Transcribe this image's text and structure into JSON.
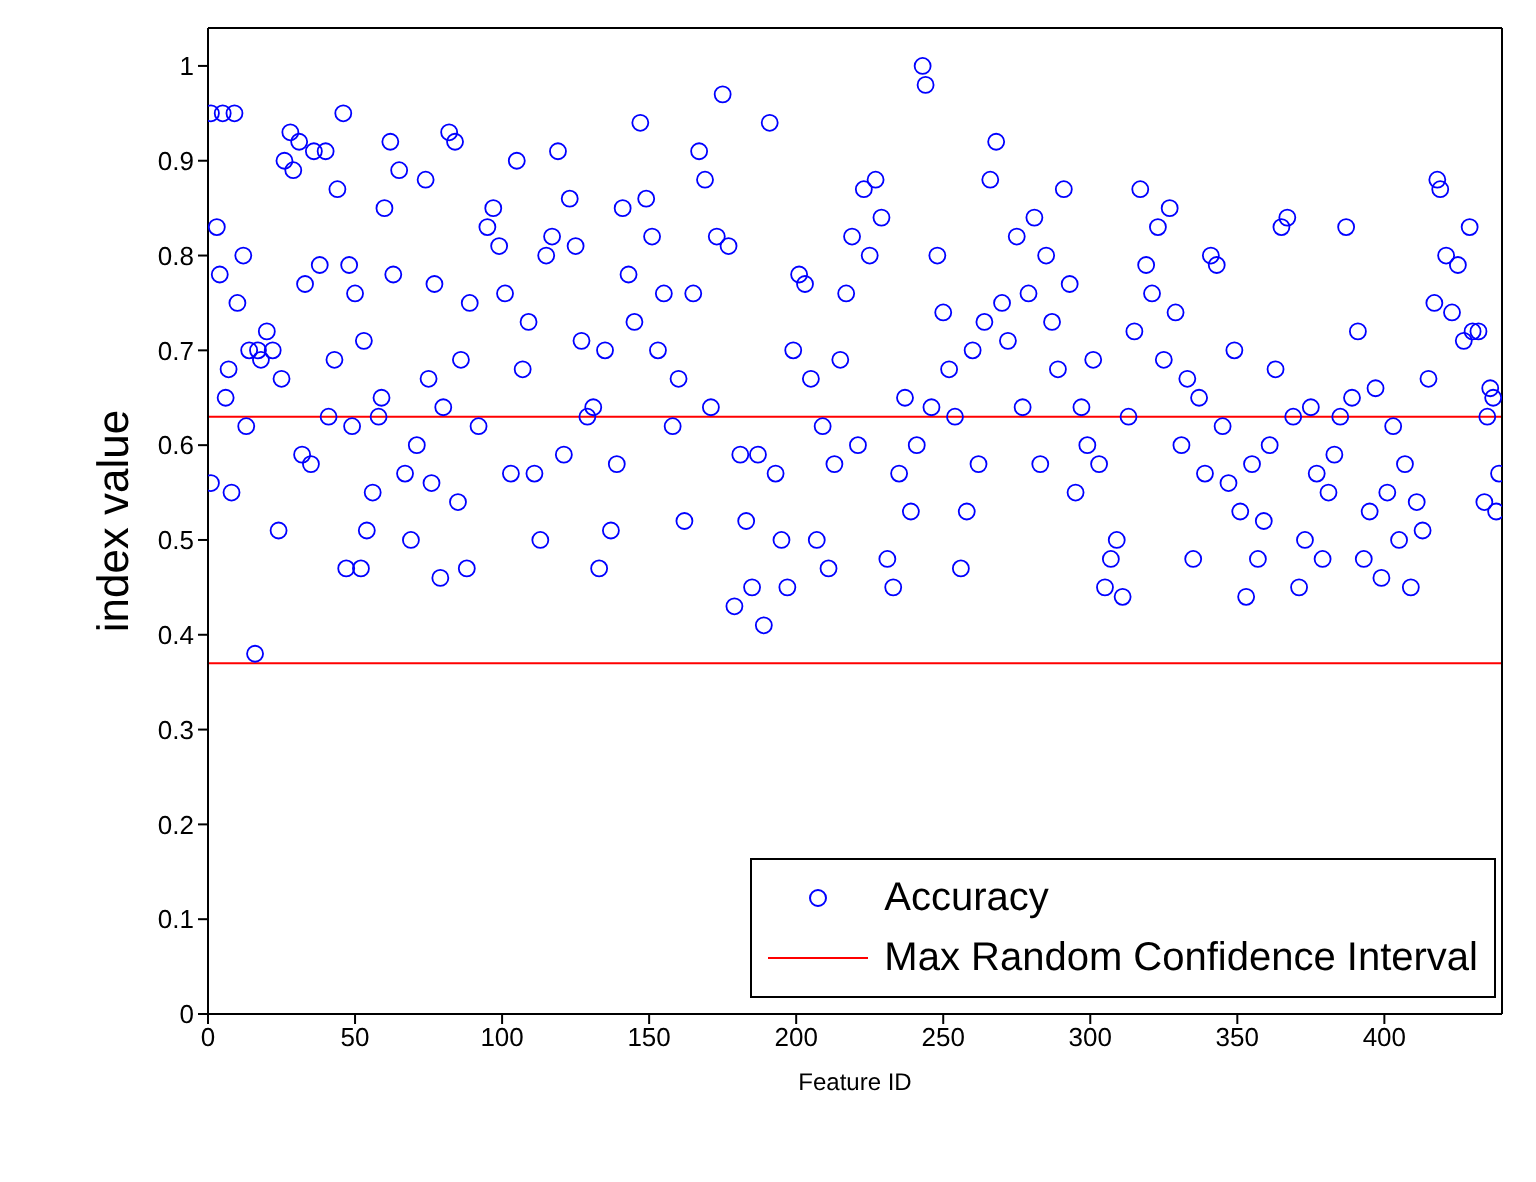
{
  "chart_data": {
    "type": "scatter",
    "xlabel": "Feature ID",
    "ylabel": "index value",
    "xlim": [
      0,
      440
    ],
    "xticks": [
      0,
      50,
      100,
      150,
      200,
      250,
      300,
      350,
      400
    ],
    "ylim": [
      0,
      1.04
    ],
    "yticks": [
      0,
      0.1,
      0.2,
      0.3,
      0.4,
      0.5,
      0.6,
      0.7,
      0.8,
      0.9,
      1
    ],
    "grid": false,
    "legend": "bottom right",
    "marker": "circle",
    "series": [
      {
        "name": "Accuracy",
        "color": "#0000ff",
        "x": [
          1,
          1,
          3,
          4,
          5,
          6,
          7,
          8,
          9,
          10,
          12,
          13,
          14,
          16,
          17,
          18,
          20,
          22,
          24,
          25,
          26,
          28,
          29,
          31,
          32,
          33,
          35,
          36,
          38,
          40,
          41,
          43,
          44,
          46,
          47,
          48,
          49,
          50,
          52,
          53,
          54,
          56,
          58,
          59,
          60,
          62,
          63,
          65,
          67,
          69,
          71,
          74,
          75,
          76,
          77,
          79,
          80,
          82,
          84,
          85,
          86,
          88,
          89,
          92,
          95,
          97,
          99,
          101,
          103,
          105,
          107,
          109,
          111,
          113,
          115,
          117,
          119,
          121,
          123,
          125,
          127,
          129,
          131,
          133,
          135,
          137,
          139,
          141,
          143,
          145,
          147,
          149,
          151,
          153,
          155,
          158,
          160,
          162,
          165,
          167,
          169,
          171,
          173,
          175,
          177,
          179,
          181,
          183,
          185,
          187,
          189,
          191,
          193,
          195,
          197,
          199,
          201,
          203,
          205,
          207,
          209,
          211,
          213,
          215,
          217,
          219,
          221,
          223,
          225,
          227,
          229,
          231,
          233,
          235,
          237,
          239,
          241,
          243,
          244,
          246,
          248,
          250,
          252,
          254,
          256,
          258,
          260,
          262,
          264,
          266,
          268,
          270,
          272,
          275,
          277,
          279,
          281,
          283,
          285,
          287,
          289,
          291,
          293,
          295,
          297,
          299,
          301,
          303,
          305,
          307,
          309,
          311,
          313,
          315,
          317,
          319,
          321,
          323,
          325,
          327,
          329,
          331,
          333,
          335,
          337,
          339,
          341,
          343,
          345,
          347,
          349,
          351,
          353,
          355,
          357,
          359,
          361,
          363,
          365,
          367,
          369,
          371,
          373,
          375,
          377,
          379,
          381,
          383,
          385,
          387,
          389,
          391,
          393,
          395,
          397,
          399,
          401,
          403,
          405,
          407,
          409,
          411,
          413,
          415,
          417,
          418,
          419,
          421,
          423,
          425,
          427,
          429,
          430,
          432,
          434,
          435,
          436,
          437,
          438,
          439
        ],
        "values": [
          0.95,
          0.56,
          0.83,
          0.78,
          0.95,
          0.65,
          0.68,
          0.55,
          0.95,
          0.75,
          0.8,
          0.62,
          0.7,
          0.38,
          0.7,
          0.69,
          0.72,
          0.7,
          0.51,
          0.67,
          0.9,
          0.93,
          0.89,
          0.92,
          0.59,
          0.77,
          0.58,
          0.91,
          0.79,
          0.91,
          0.63,
          0.69,
          0.87,
          0.95,
          0.47,
          0.79,
          0.62,
          0.76,
          0.47,
          0.71,
          0.51,
          0.55,
          0.63,
          0.65,
          0.85,
          0.92,
          0.78,
          0.89,
          0.57,
          0.5,
          0.6,
          0.88,
          0.67,
          0.56,
          0.77,
          0.46,
          0.64,
          0.93,
          0.92,
          0.54,
          0.69,
          0.47,
          0.75,
          0.62,
          0.83,
          0.85,
          0.81,
          0.76,
          0.57,
          0.9,
          0.68,
          0.73,
          0.57,
          0.5,
          0.8,
          0.82,
          0.91,
          0.59,
          0.86,
          0.81,
          0.71,
          0.63,
          0.64,
          0.47,
          0.7,
          0.51,
          0.58,
          0.85,
          0.78,
          0.73,
          0.94,
          0.86,
          0.82,
          0.7,
          0.76,
          0.62,
          0.67,
          0.52,
          0.76,
          0.91,
          0.88,
          0.64,
          0.82,
          0.97,
          0.81,
          0.43,
          0.59,
          0.52,
          0.45,
          0.59,
          0.41,
          0.94,
          0.57,
          0.5,
          0.45,
          0.7,
          0.78,
          0.77,
          0.67,
          0.5,
          0.62,
          0.47,
          0.58,
          0.69,
          0.76,
          0.82,
          0.6,
          0.87,
          0.8,
          0.88,
          0.84,
          0.48,
          0.45,
          0.57,
          0.65,
          0.53,
          0.6,
          1.0,
          0.98,
          0.64,
          0.8,
          0.74,
          0.68,
          0.63,
          0.47,
          0.53,
          0.7,
          0.58,
          0.73,
          0.88,
          0.92,
          0.75,
          0.71,
          0.82,
          0.64,
          0.76,
          0.84,
          0.58,
          0.8,
          0.73,
          0.68,
          0.87,
          0.77,
          0.55,
          0.64,
          0.6,
          0.69,
          0.58,
          0.45,
          0.48,
          0.5,
          0.44,
          0.63,
          0.72,
          0.87,
          0.79,
          0.76,
          0.83,
          0.69,
          0.85,
          0.74,
          0.6,
          0.67,
          0.48,
          0.65,
          0.57,
          0.8,
          0.79,
          0.62,
          0.56,
          0.7,
          0.53,
          0.44,
          0.58,
          0.48,
          0.52,
          0.6,
          0.68,
          0.83,
          0.84,
          0.63,
          0.45,
          0.5,
          0.64,
          0.57,
          0.48,
          0.55,
          0.59,
          0.63,
          0.83,
          0.65,
          0.72,
          0.48,
          0.53,
          0.66,
          0.46,
          0.55,
          0.62,
          0.5,
          0.58,
          0.45,
          0.54,
          0.51,
          0.67,
          0.75,
          0.88,
          0.87,
          0.8,
          0.74,
          0.79,
          0.71,
          0.83,
          0.72,
          0.72,
          0.54,
          0.63,
          0.66,
          0.65,
          0.53,
          0.57
        ]
      }
    ],
    "ref_lines": [
      {
        "axis": "y",
        "value": 0.63,
        "label": "Max Random Confidence Interval",
        "color": "#ff0000"
      },
      {
        "axis": "y",
        "value": 0.37,
        "color": "#ff0000"
      }
    ]
  }
}
